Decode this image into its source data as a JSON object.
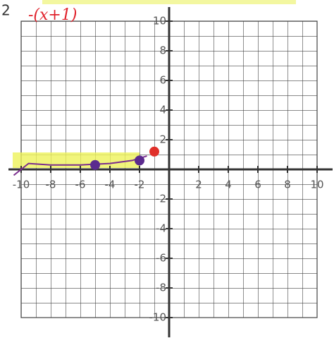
{
  "chart_data": {
    "type": "scatter",
    "number": "2",
    "title": "-(x+1)",
    "xlim": [
      -10,
      10
    ],
    "ylim": [
      -10,
      10
    ],
    "xticks": [
      -10,
      -8,
      -6,
      -4,
      -2,
      2,
      4,
      6,
      8,
      10
    ],
    "yticks": [
      10,
      8,
      6,
      4,
      2,
      -2,
      -4,
      -6,
      -8,
      -10
    ],
    "series": [
      {
        "color": "#7b2d8e",
        "mode": "line",
        "x": [
          -10.5,
          -9.5,
          -8,
          -6,
          -4,
          -2.5,
          -1.5
        ],
        "values": [
          -0.4,
          0.4,
          0.3,
          0.3,
          0.4,
          0.6,
          0.9
        ]
      },
      {
        "color": "#5b2a8e",
        "mode": "points",
        "x": [
          -5,
          -2
        ],
        "values": [
          0.3,
          0.6
        ]
      },
      {
        "color": "#e0302a",
        "mode": "points",
        "x": [
          -1
        ],
        "values": [
          1.2
        ]
      }
    ]
  }
}
